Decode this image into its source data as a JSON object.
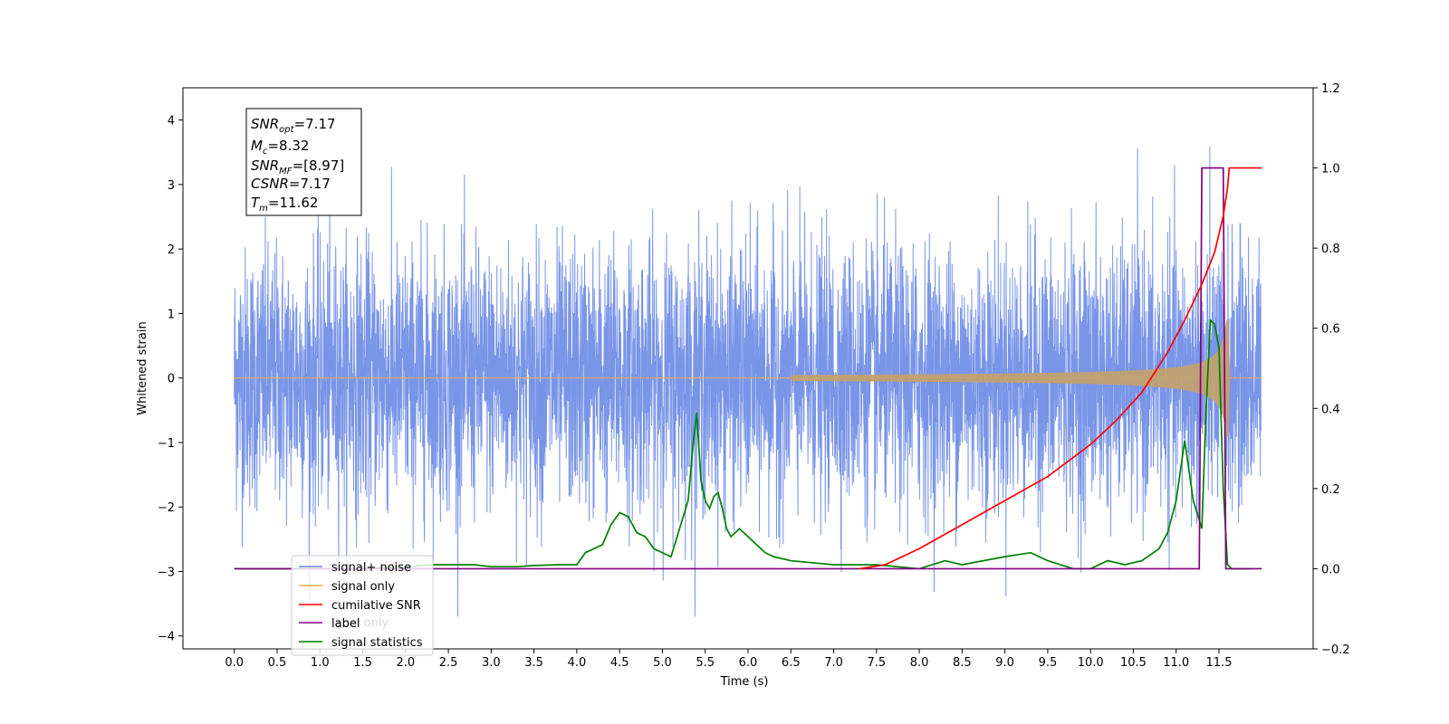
{
  "chart_data": {
    "type": "line",
    "xlabel": "Time (s)",
    "ylabel": "Whitened strain",
    "xlim": [
      -0.6,
      12.6
    ],
    "ylim": [
      -4.2,
      4.5
    ],
    "y2lim": [
      -0.2,
      1.2
    ],
    "x_ticks": [
      "0.0",
      "0.5",
      "1.0",
      "1.5",
      "2.0",
      "2.5",
      "3.0",
      "3.5",
      "4.0",
      "4.5",
      "5.0",
      "5.5",
      "6.0",
      "6.5",
      "7.0",
      "7.5",
      "8.0",
      "8.5",
      "9.0",
      "9.5",
      "10.0",
      "10.5",
      "11.0",
      "11.5"
    ],
    "y_ticks": [
      "4",
      "3",
      "2",
      "1",
      "0",
      "−1",
      "−2",
      "−3",
      "−4"
    ],
    "y2_ticks": [
      "1.2",
      "1.0",
      "0.8",
      "0.6",
      "0.4",
      "0.2",
      "0.0",
      "−0.2"
    ],
    "annotation": {
      "snr_opt": {
        "base": "SNR",
        "sub": "opt",
        "value": "=7.17"
      },
      "mc": {
        "base": "M",
        "sub": "c",
        "value": "=8.32"
      },
      "snr_mf": {
        "base": "SNR",
        "sub": "MF",
        "value": "=[8.97]"
      },
      "csnr": {
        "base": "CSNR",
        "sub": "",
        "value": "=7.17"
      },
      "tm": {
        "base": "T",
        "sub": "m",
        "value": "=11.62"
      }
    },
    "legend": {
      "placement": "lower-left",
      "entries": [
        "signal+ noise",
        "signal only",
        "cumilative SNR",
        "label",
        "signal statistics"
      ],
      "hidden_label": "label only"
    },
    "series": [
      {
        "name": "signal+ noise",
        "axis": "left",
        "color": "#6a8ae6",
        "description_values": {
          "t_start": 0.0,
          "t_end": 11.99,
          "std": 1.0
        }
      },
      {
        "name": "signal only",
        "axis": "left",
        "color": "#f5b041",
        "description_values": {
          "chirp_end": 11.62,
          "amp_at_11.5": 0.9
        }
      },
      {
        "name": "cumilative SNR",
        "axis": "right",
        "color": "#ff0000",
        "x": [
          7.3,
          7.6,
          8.0,
          8.5,
          9.0,
          9.5,
          10.0,
          10.3,
          10.6,
          10.9,
          11.1,
          11.3,
          11.45,
          11.55,
          11.6,
          11.62,
          12.0
        ],
        "y": [
          0.0,
          0.01,
          0.05,
          0.11,
          0.17,
          0.23,
          0.31,
          0.37,
          0.44,
          0.54,
          0.62,
          0.71,
          0.79,
          0.88,
          0.95,
          1.0,
          1.0
        ]
      },
      {
        "name": "label",
        "axis": "right",
        "color": "#800080",
        "x": [
          0.0,
          11.27,
          11.3,
          11.55,
          11.58,
          11.62,
          12.0
        ],
        "y": [
          0.0,
          0.0,
          1.0,
          1.0,
          0.0,
          0.0,
          0.0
        ]
      },
      {
        "name": "signal statistics",
        "axis": "right",
        "color": "#008000",
        "x": [
          0.0,
          0.5,
          1.0,
          1.5,
          2.0,
          2.3,
          2.5,
          2.8,
          3.0,
          3.3,
          3.5,
          3.8,
          4.0,
          4.1,
          4.2,
          4.3,
          4.4,
          4.5,
          4.6,
          4.7,
          4.8,
          4.9,
          5.0,
          5.1,
          5.2,
          5.3,
          5.35,
          5.4,
          5.45,
          5.5,
          5.55,
          5.6,
          5.65,
          5.7,
          5.75,
          5.8,
          5.9,
          6.0,
          6.1,
          6.2,
          6.3,
          6.5,
          7.0,
          7.5,
          8.0,
          8.3,
          8.5,
          9.0,
          9.3,
          9.5,
          9.8,
          10.0,
          10.2,
          10.4,
          10.6,
          10.8,
          10.9,
          11.0,
          11.1,
          11.2,
          11.3,
          11.35,
          11.4,
          11.45,
          11.5,
          11.55,
          11.6,
          11.65,
          11.7,
          11.8,
          11.9
        ],
        "y": [
          0.0,
          0.0,
          0.0,
          0.0,
          0.005,
          0.01,
          0.01,
          0.01,
          0.005,
          0.005,
          0.008,
          0.01,
          0.01,
          0.04,
          0.05,
          0.06,
          0.11,
          0.14,
          0.13,
          0.09,
          0.08,
          0.05,
          0.04,
          0.03,
          0.1,
          0.17,
          0.29,
          0.39,
          0.22,
          0.17,
          0.15,
          0.18,
          0.19,
          0.15,
          0.1,
          0.08,
          0.1,
          0.08,
          0.06,
          0.04,
          0.03,
          0.02,
          0.01,
          0.01,
          0.0,
          0.02,
          0.01,
          0.03,
          0.04,
          0.02,
          0.0,
          0.0,
          0.02,
          0.01,
          0.02,
          0.05,
          0.09,
          0.17,
          0.32,
          0.17,
          0.1,
          0.4,
          0.62,
          0.61,
          0.55,
          0.2,
          0.01,
          0.0,
          0.0,
          0.0,
          0.0
        ]
      }
    ]
  }
}
